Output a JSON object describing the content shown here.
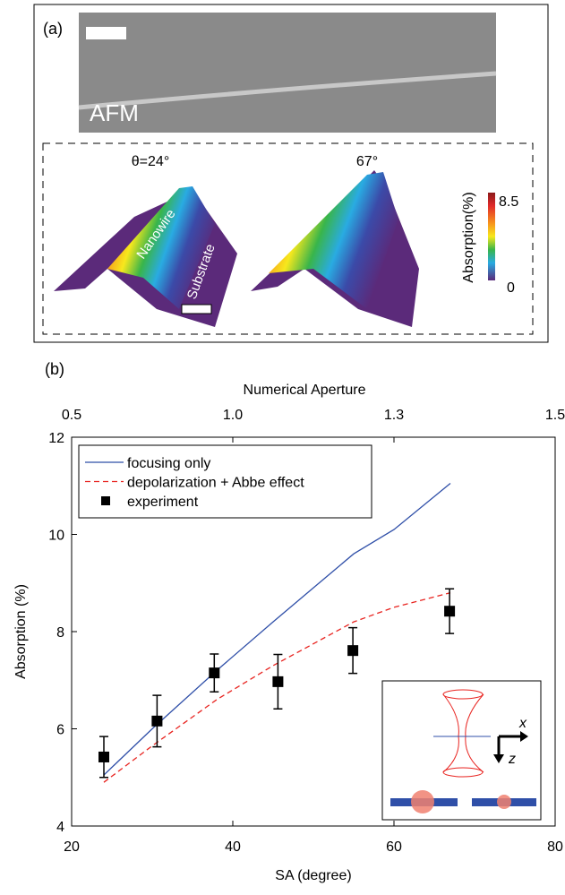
{
  "panel_a": {
    "label": "(a)",
    "afm_label": "AFM",
    "angle_left": "θ=24°",
    "angle_right": "67°",
    "nanowire_label": "Nanowire",
    "substrate_label": "Substrate",
    "colorbar": {
      "label": "Absorption(%)",
      "min": 0,
      "max": 8.5
    }
  },
  "inset": {
    "x_axis": "x",
    "z_axis": "z"
  },
  "chart_data": {
    "type": "line",
    "panel_label": "(b)",
    "x_label": "SA (degree)",
    "y_label": "Absorption (%)",
    "x2_label": "Numerical Aperture",
    "xlim": [
      20,
      80
    ],
    "xticks": [
      20,
      40,
      60,
      80
    ],
    "x2ticks": [
      {
        "value": 20,
        "label": "0.5"
      },
      {
        "value": 40,
        "label": "1.0"
      },
      {
        "value": 60,
        "label": "1.3"
      },
      {
        "value": 80,
        "label": "1.5"
      }
    ],
    "ylim": [
      4,
      12
    ],
    "yticks": [
      4,
      6,
      8,
      10,
      12
    ],
    "series": [
      {
        "name": "focusing only",
        "color": "#2f4fa8",
        "style": "solid",
        "x": [
          24,
          30,
          38,
          45,
          50,
          55,
          60,
          67
        ],
        "values": [
          5.05,
          6.0,
          7.2,
          8.2,
          8.9,
          9.6,
          10.1,
          11.05
        ]
      },
      {
        "name": "depolarization + Abbe effect",
        "color": "#e8231f",
        "style": "dashed",
        "x": [
          24,
          30,
          38,
          45,
          50,
          55,
          60,
          67
        ],
        "values": [
          4.9,
          5.65,
          6.6,
          7.3,
          7.75,
          8.2,
          8.5,
          8.8
        ]
      },
      {
        "name": "experiment",
        "color": "#000000",
        "style": "markers",
        "x": [
          24,
          30.6,
          37.7,
          45.6,
          54.9,
          66.9
        ],
        "values": [
          5.42,
          6.16,
          7.15,
          6.97,
          7.61,
          8.42
        ],
        "errors": [
          0.42,
          0.53,
          0.39,
          0.56,
          0.47,
          0.46
        ]
      }
    ]
  }
}
